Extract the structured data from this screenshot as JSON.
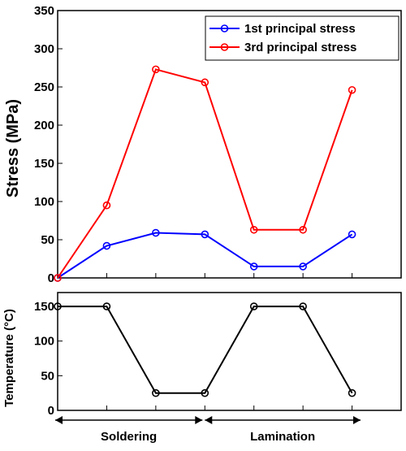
{
  "chart_data": [
    {
      "type": "line",
      "ylabel": "Stress (MPa)",
      "ylim": [
        0,
        350
      ],
      "yticks": [
        0,
        50,
        100,
        150,
        200,
        250,
        300,
        350
      ],
      "x": [
        0,
        1,
        2,
        3,
        4,
        5,
        6
      ],
      "xlim": [
        0,
        7
      ],
      "grid": false,
      "legend": "top-right",
      "series": [
        {
          "name": "1st principal stress",
          "color": "#0000ff",
          "values": [
            0,
            42,
            59,
            57,
            15,
            15,
            57
          ]
        },
        {
          "name": "3rd principal stress",
          "color": "#ff0000",
          "values": [
            0,
            95,
            273,
            256,
            63,
            63,
            246
          ]
        }
      ]
    },
    {
      "type": "line",
      "ylabel": "Temperature (°C)",
      "ylim": [
        0,
        170
      ],
      "yticks": [
        0,
        50,
        100,
        150
      ],
      "x": [
        0,
        1,
        2,
        3,
        4,
        5,
        6
      ],
      "xlim": [
        0,
        7
      ],
      "grid": false,
      "series": [
        {
          "color": "#000000",
          "values": [
            150,
            150,
            25,
            25,
            150,
            150,
            25
          ]
        }
      ]
    }
  ],
  "phases": [
    {
      "label": "Soldering",
      "from": 0,
      "to": 3
    },
    {
      "label": "Lamination",
      "from": 3,
      "to": 7
    }
  ]
}
